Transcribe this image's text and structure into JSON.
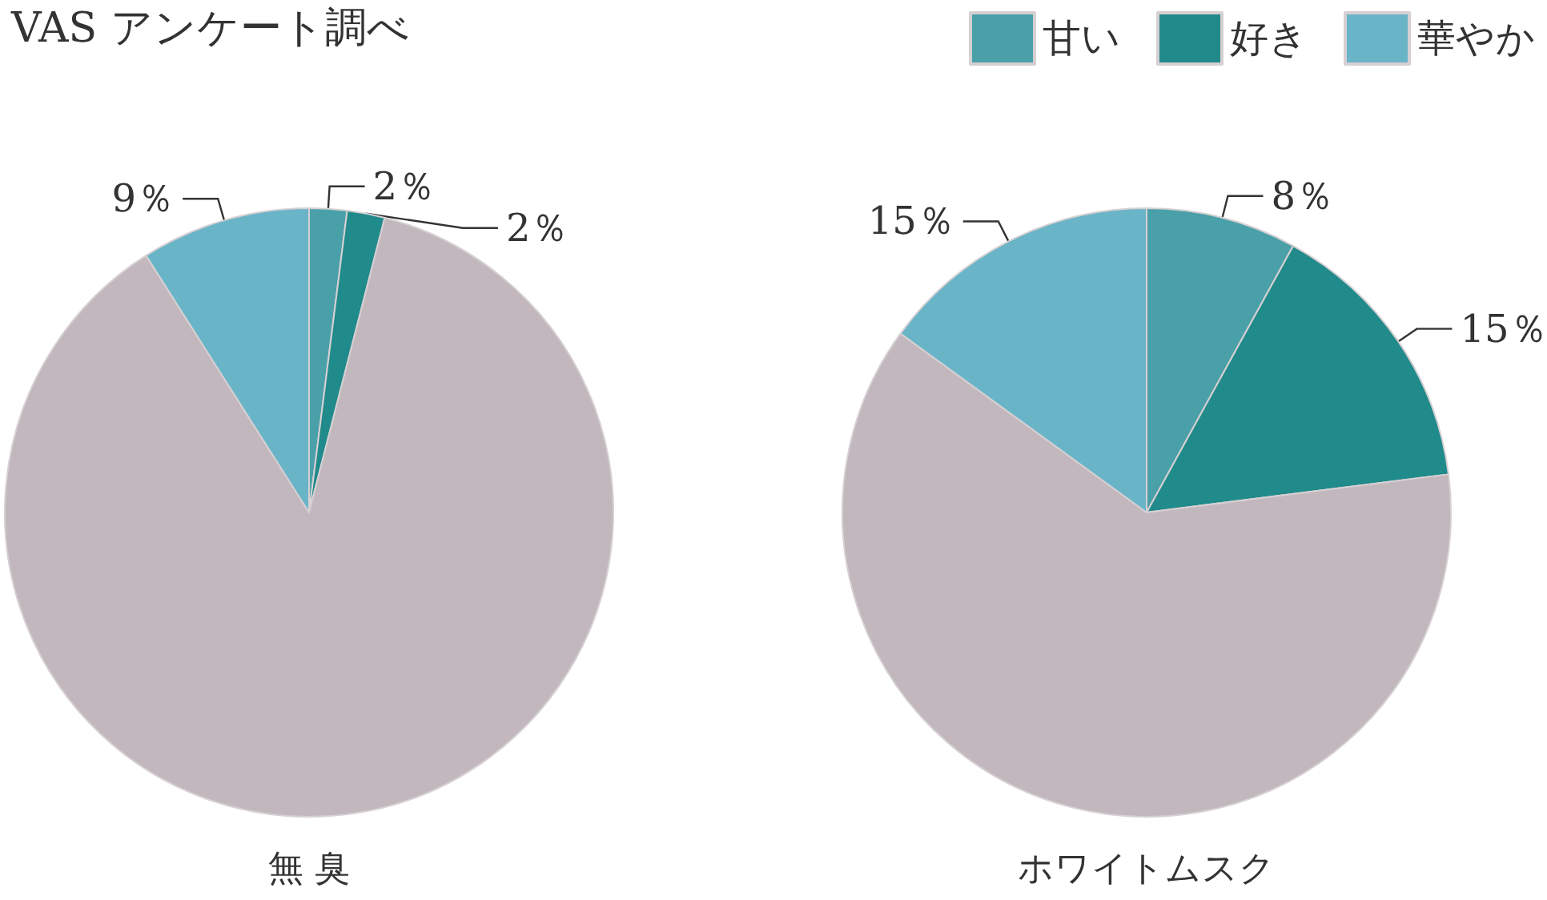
{
  "chart_data": {
    "type": "pie",
    "title": "VAS アンケート調べ",
    "categories": [
      "甘い",
      "好き",
      null,
      "華やか"
    ],
    "colors": [
      "#4aa0a8",
      "#218a8a",
      "#c1b7bc",
      "#6ab4c8"
    ],
    "legend": "top right",
    "series": [
      {
        "name": "無 臭",
        "values": [
          2,
          2,
          87,
          9
        ],
        "value_labels": [
          "2％",
          "2％",
          null,
          "9％"
        ]
      },
      {
        "name": "ホワイトムスク",
        "values": [
          8,
          15,
          62,
          15
        ],
        "value_labels": [
          "8％",
          "15％",
          null,
          "15％"
        ]
      }
    ]
  }
}
